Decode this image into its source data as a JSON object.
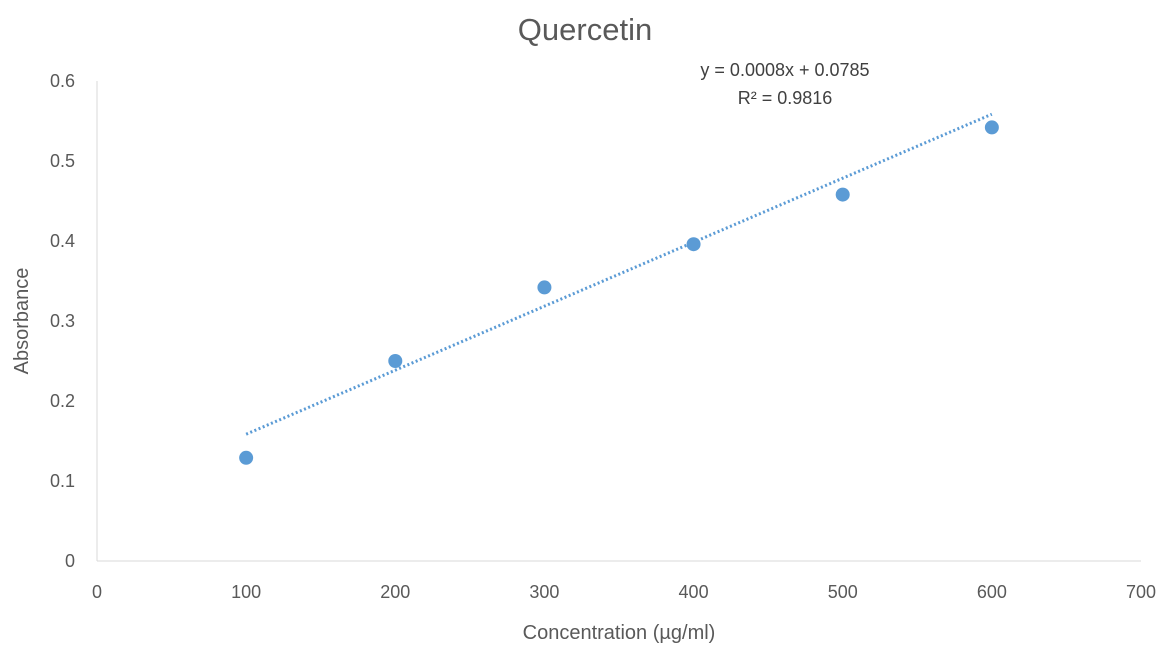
{
  "chart_data": {
    "type": "scatter",
    "title": "Quercetin",
    "xlabel": "Concentration (µg/ml)",
    "ylabel": "Absorbance",
    "xlim": [
      0,
      700
    ],
    "ylim": [
      0,
      0.6
    ],
    "x_ticks": [
      0,
      100,
      200,
      300,
      400,
      500,
      600,
      700
    ],
    "y_ticks": [
      0,
      0.1,
      0.2,
      0.3,
      0.4,
      0.5,
      0.6
    ],
    "x_tick_labels": [
      "0",
      "100",
      "200",
      "300",
      "400",
      "500",
      "600",
      "700"
    ],
    "y_tick_labels": [
      "0",
      "0.1",
      "0.2",
      "0.3",
      "0.4",
      "0.5",
      "0.6"
    ],
    "grid": false,
    "legend": "none",
    "series": [
      {
        "x": [
          100,
          200,
          300,
          400,
          500,
          600
        ],
        "y": [
          0.129,
          0.25,
          0.342,
          0.396,
          0.458,
          0.542
        ],
        "color": "#5B9BD5"
      }
    ],
    "trendline": {
      "type": "linear",
      "style": "dotted",
      "color": "#5B9BD5",
      "slope": 0.0008,
      "intercept": 0.0785,
      "x_range": [
        100,
        600
      ]
    },
    "annotations": {
      "equation": "y = 0.0008x + 0.0785",
      "r_squared": "R² = 0.9816"
    }
  }
}
